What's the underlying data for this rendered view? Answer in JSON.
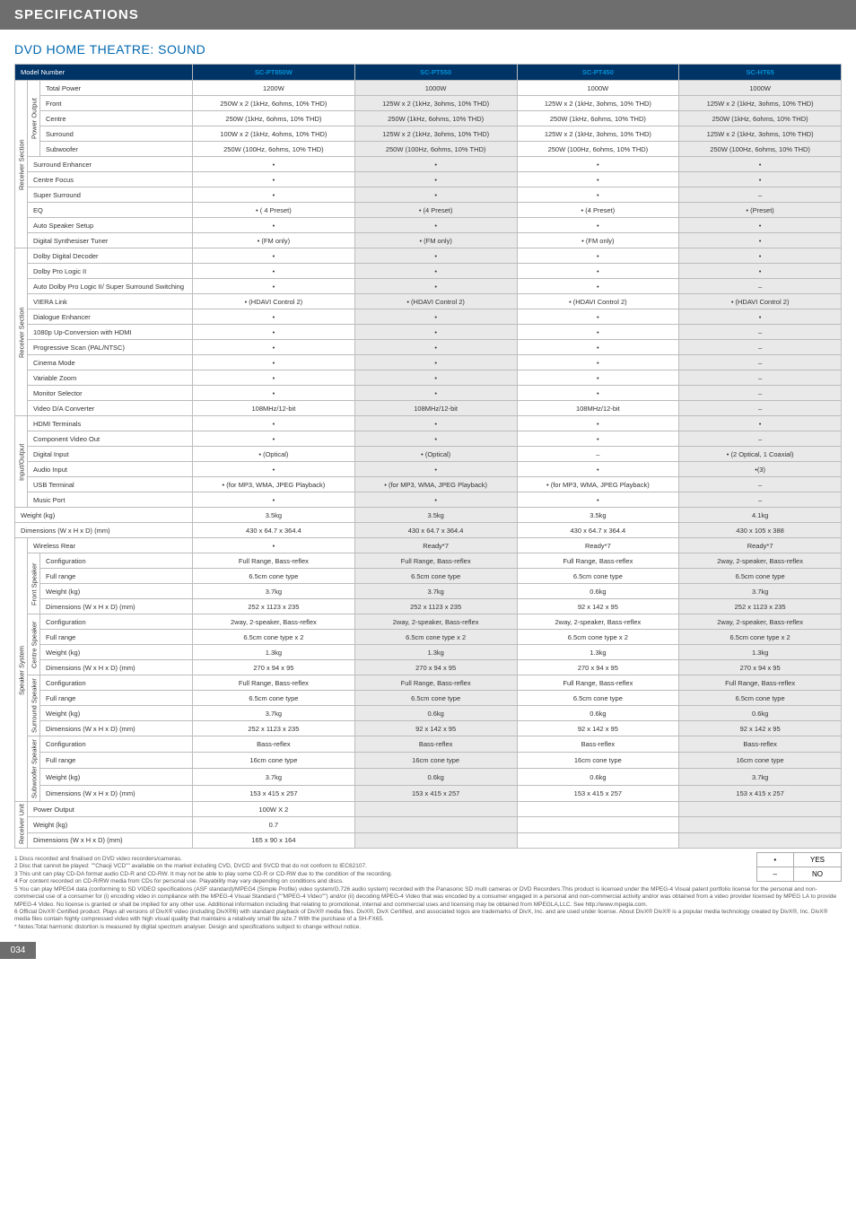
{
  "header": "SPECIFICATIONS",
  "subtitle": "DVD HOME THEATRE: SOUND",
  "model_header": "Model Number",
  "products": [
    "SC-PT850W",
    "SC-PT550",
    "SC-PT450",
    "SC-HT65"
  ],
  "dot": "•",
  "dash": "–",
  "groups": [
    {
      "rot": "Receiver Section",
      "rows": [
        {
          "sub_rot": "Power Output",
          "label": "Total Power",
          "vals": [
            "1200W",
            "1000W",
            "1000W",
            "1000W"
          ]
        },
        {
          "label": "Front",
          "vals": [
            "250W x 2 (1kHz, 6ohms, 10% THD)",
            "125W x 2 (1kHz, 3ohms, 10% THD)",
            "125W x 2 (1kHz, 3ohms, 10% THD)",
            "125W x 2 (1kHz, 3ohms, 10% THD)"
          ]
        },
        {
          "label": "Centre",
          "vals": [
            "250W  (1kHz, 6ohms, 10% THD)",
            "250W  (1kHz, 6ohms, 10% THD)",
            "250W  (1kHz, 6ohms, 10% THD)",
            "250W  (1kHz, 6ohms, 10% THD)"
          ]
        },
        {
          "label": "Surround",
          "vals": [
            "100W x 2  (1kHz, 4ohms, 10% THD)",
            "125W x 2  (1kHz, 3ohms, 10% THD)",
            "125W x 2  (1kHz, 3ohms, 10% THD)",
            "125W x 2  (1kHz, 3ohms, 10% THD)"
          ]
        },
        {
          "label": "Subwoofer",
          "vals": [
            "250W (100Hz, 6ohms, 10% THD)",
            "250W (100Hz, 6ohms, 10% THD)",
            "250W (100Hz, 6ohms, 10% THD)",
            "250W (100Hz, 6ohms, 10% THD)"
          ]
        },
        {
          "span": true,
          "label": "Surround Enhancer",
          "vals": [
            "•",
            "•",
            "•",
            "•"
          ]
        },
        {
          "span": true,
          "label": "Centre Focus",
          "vals": [
            "•",
            "•",
            "•",
            "•"
          ]
        },
        {
          "span": true,
          "label": "Super Surround",
          "vals": [
            "•",
            "•",
            "•",
            "–"
          ]
        },
        {
          "span": true,
          "label": "EQ",
          "vals": [
            "• ( 4 Preset)",
            "• (4 Preset)",
            "• (4 Preset)",
            "• (Preset)"
          ]
        },
        {
          "span": true,
          "label": "Auto Speaker Setup",
          "vals": [
            "•",
            "•",
            "•",
            "•"
          ]
        },
        {
          "span": true,
          "label": "Digital Synthesiser Tuner",
          "vals": [
            "• (FM only)",
            "• (FM only)",
            "• (FM only)",
            "•"
          ]
        }
      ]
    },
    {
      "rot": "Receiver Section",
      "rows": [
        {
          "span": true,
          "label": "Dolby Digital Decoder",
          "vals": [
            "•",
            "•",
            "•",
            "•"
          ]
        },
        {
          "span": true,
          "label": "Dolby Pro Logic II",
          "vals": [
            "•",
            "•",
            "•",
            "•"
          ]
        },
        {
          "span": true,
          "label": "Auto Dolby Pro Logic II/ Super Surround Switching",
          "vals": [
            "•",
            "•",
            "•",
            "–"
          ]
        },
        {
          "span": true,
          "label": "VIERA Link",
          "vals": [
            "• (HDAVI Control 2)",
            "• (HDAVI Control 2)",
            "• (HDAVI Control 2)",
            "• (HDAVI Control 2)"
          ]
        },
        {
          "span": true,
          "label": "Dialogue Enhancer",
          "vals": [
            "•",
            "•",
            "•",
            "•"
          ]
        },
        {
          "span": true,
          "label": "1080p Up-Conversion with HDMI",
          "vals": [
            "•",
            "•",
            "•",
            "–"
          ]
        },
        {
          "span": true,
          "label": "Progressive Scan (PAL/NTSC)",
          "vals": [
            "•",
            "•",
            "•",
            "–"
          ]
        },
        {
          "span": true,
          "label": "Cinema Mode",
          "vals": [
            "•",
            "•",
            "•",
            "–"
          ]
        },
        {
          "span": true,
          "label": "Variable  Zoom",
          "vals": [
            "•",
            "•",
            "•",
            "–"
          ]
        },
        {
          "span": true,
          "label": "Monitor Selector",
          "vals": [
            "•",
            "•",
            "•",
            "–"
          ]
        },
        {
          "span": true,
          "label": "Video D/A Converter",
          "vals": [
            "108MHz/12-bit",
            "108MHz/12-bit",
            "108MHz/12-bit",
            "–"
          ]
        }
      ]
    },
    {
      "rot": "Input/Output",
      "rows": [
        {
          "span": true,
          "label": "HDMI Terminals",
          "vals": [
            "•",
            "•",
            "•",
            "•"
          ]
        },
        {
          "span": true,
          "label": "Component Video Out",
          "vals": [
            "•",
            "•",
            "•",
            "–"
          ]
        },
        {
          "span": true,
          "label": "Digital Input",
          "vals": [
            "• (Optical)",
            "• (Optical)",
            "–",
            "• (2 Optical, 1 Coaxial)"
          ]
        },
        {
          "span": true,
          "label": "Audio Input",
          "vals": [
            "•",
            "•",
            "•",
            "•(3)"
          ]
        },
        {
          "span": true,
          "label": "USB Terminal",
          "vals": [
            "• (for MP3, WMA, JPEG Playback)",
            "• (for MP3, WMA, JPEG Playback)",
            "• (for MP3, WMA, JPEG Playback)",
            "–"
          ]
        },
        {
          "span": true,
          "label": "Music Port",
          "vals": [
            "•",
            "•",
            "•",
            "–"
          ]
        }
      ]
    }
  ],
  "simple_rows": [
    {
      "label": "Weight (kg)",
      "vals": [
        "3.5kg",
        "3.5kg",
        "3.5kg",
        "4.1kg"
      ]
    },
    {
      "label": "Dimensions (W x H x D) (mm)",
      "vals": [
        "430 x 64.7 x 364.4",
        "430 x 64.7 x 364.4",
        "430 x 64.7 x 364.4",
        "430 x 105 x 388"
      ]
    }
  ],
  "speaker_system": {
    "rot": "Speaker System",
    "wireless": {
      "label": "Wireless Rear",
      "vals": [
        "•",
        "Ready*7",
        "Ready*7",
        "Ready*7"
      ]
    },
    "sections": [
      {
        "rot": "Front  Speaker",
        "rows": [
          {
            "label": "Configuration",
            "vals": [
              "Full Range, Bass-reflex",
              "Full Range, Bass-reflex",
              "Full Range, Bass-reflex",
              "2way, 2-speaker, Bass-reflex"
            ]
          },
          {
            "label": "Full range",
            "vals": [
              "6.5cm cone type",
              "6.5cm cone type",
              "6.5cm cone type",
              "6.5cm cone type"
            ]
          },
          {
            "label": "Weight  (kg)",
            "vals": [
              "3.7kg",
              "3.7kg",
              "0.6kg",
              "3.7kg"
            ]
          },
          {
            "label": "Dimensions (W x H x D) (mm)",
            "vals": [
              "252 x 1123 x 235",
              "252 x 1123 x 235",
              "92 x 142 x 95",
              "252 x 1123 x 235"
            ]
          }
        ]
      },
      {
        "rot": "Centre  Speaker",
        "rows": [
          {
            "label": "Configuration",
            "vals": [
              "2way, 2-speaker, Bass-reflex",
              "2way, 2-speaker, Bass-reflex",
              "2way, 2-speaker, Bass-reflex",
              "2way, 2-speaker, Bass-reflex"
            ]
          },
          {
            "label": "Full range",
            "vals": [
              "6.5cm cone type x 2",
              "6.5cm cone type x 2",
              "6.5cm cone type x 2",
              "6.5cm cone type x 2"
            ]
          },
          {
            "label": "Weight  (kg)",
            "vals": [
              "1.3kg",
              "1.3kg",
              "1.3kg",
              "1.3kg"
            ]
          },
          {
            "label": "Dimensions (W x H x D) (mm)",
            "vals": [
              "270 x 94 x 95",
              "270 x 94 x 95",
              "270 x 94 x 95",
              "270 x 94 x 95"
            ]
          }
        ]
      },
      {
        "rot": "Surround  Speaker",
        "rows": [
          {
            "label": "Configuration",
            "vals": [
              "Full Range, Bass-reflex",
              "Full Range, Bass-reflex",
              "Full Range, Bass-reflex",
              "Full Range, Bass-reflex"
            ]
          },
          {
            "label": "Full range",
            "vals": [
              "6.5cm cone type",
              "6.5cm cone type",
              "6.5cm cone type",
              "6.5cm cone type"
            ]
          },
          {
            "label": "Weight  (kg)",
            "vals": [
              "3.7kg",
              "0.6kg",
              "0.6kg",
              "0.6kg"
            ]
          },
          {
            "label": "Dimensions (W x H x D) (mm)",
            "vals": [
              "252 x 1123 x 235",
              "92 x 142 x 95",
              "92 x 142 x 95",
              "92 x 142 x 95"
            ]
          }
        ]
      },
      {
        "rot": "Subwoofer  Speaker",
        "rows": [
          {
            "label": "Configuration",
            "vals": [
              "Bass-reflex",
              "Bass-reflex",
              "Bass-reflex",
              "Bass-reflex"
            ]
          },
          {
            "label": "Full range",
            "vals": [
              "16cm  cone type",
              "16cm  cone type",
              "16cm  cone type",
              "16cm cone type"
            ]
          },
          {
            "label": "Weight  (kg)",
            "vals": [
              "3.7kg",
              "0.6kg",
              "0.6kg",
              "3.7kg"
            ]
          },
          {
            "label": "Dimensions (W x H x D) (mm)",
            "vals": [
              "153 x 415 x 257",
              "153 x 415 x 257",
              "153 x 415 x 257",
              "153 x 415 x 257"
            ]
          }
        ]
      }
    ]
  },
  "receiver_unit": {
    "rot": "Receiver Unit",
    "rows": [
      {
        "label": "Power Output",
        "vals": [
          "100W X 2",
          "",
          "",
          ""
        ]
      },
      {
        "label": "Weight  (kg)",
        "vals": [
          "0.7",
          "",
          "",
          ""
        ]
      },
      {
        "label": "Dimensions (W x H x D) (mm)",
        "vals": [
          "165 x 90 x 164",
          "",
          "",
          ""
        ]
      }
    ]
  },
  "footnotes": [
    "1 Discs recorded and finalised on DVD video recorders/cameras.",
    "2 Disc that cannot be played: \"\"Chaoji VCD\"\" available on the market including CVD, DVCD and SVCD that do not conform to IEC62107.",
    "3 This unit can play CD-DA format audio CD-R and CD-RW. It may not be able to play some CD-R or CD-RW due to the condition of the recording.",
    "4 For content recorded on CD-R/RW media from CDs for personal use. Playability may vary depending on conditions and discs.",
    "5 You can play MPEG4 data (conforming to SD VIDEO specifications (ASF standard)/MPEG4 (Simple Profile) video system/G.726 audio system) recorded with the Panasonic SD multi cameras or DVD Recorders.This product is licensed under the MPEG-4 Visual patent portfolio license for the personal and non-commercial use of a consumer for (i) encoding video in compliance with the MPEG-4 Visual Standard (\"\"MPEG-4 Video\"\") and/or (ii) decoding MPEG-4 Video that was encoded by a consumer engaged in a personal and non-commercial activity and/or was obtained from a video provider licensed by MPEG LA to provide MPEG-4 Video. No license is granted or shall be implied for any other use. Additional information including that relating to promotional, internal and commercial uses and licensing may be obtained from MPEGLA,LLC. See http://www.mpegla.com.",
    "6 Official DivX® Certified product. Plays all versions of DivX® video (including DivX®6) with standard playback of DivX® media files. DivX®, DivX Certified, and associated logos are trademarks of DivX, Inc. and are used under license. About DivX® DivX® is a popular media technology created by DivX®, Inc. DivX® media files contain highly compressed video with high visual quality that maintains a relatively small file size.7 With the purchase of a SH-FX65.",
    "* Notes:Total harmonic distortion is measured by digital spectrum analyser. Design and specifications subject to change without notice."
  ],
  "legend": {
    "yes": "YES",
    "no": "NO"
  },
  "pagenum": "034",
  "colors": {
    "header_bg": "#6e6e6e",
    "subtitle_color": "#0068b0",
    "thead_bg": "#003366",
    "product_color": "#0091d4",
    "alt_bg": "#e9e9e9",
    "border": "#bcbcbc"
  }
}
